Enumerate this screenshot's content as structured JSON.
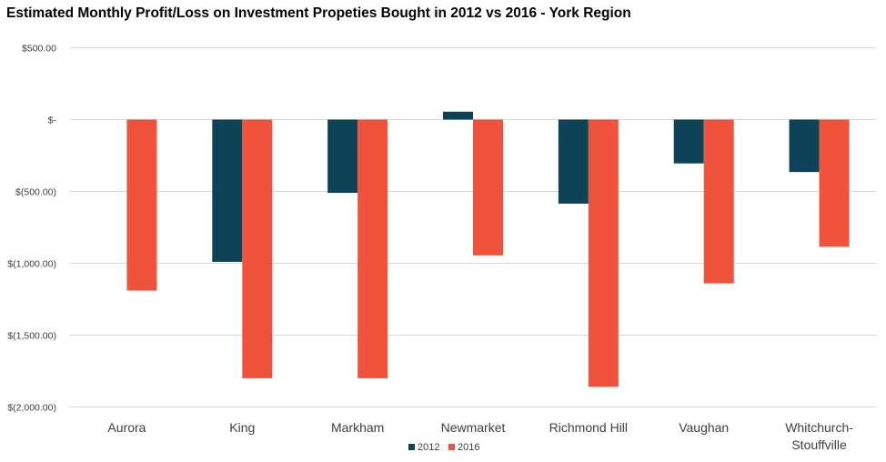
{
  "chart_data": {
    "type": "bar",
    "title": "Estimated Monthly Profit/Loss on Investment Propeties Bought in 2012 vs 2016 - York Region",
    "categories": [
      [
        "Aurora"
      ],
      [
        "King"
      ],
      [
        "Markham"
      ],
      [
        "Newmarket"
      ],
      [
        "Richmond Hill"
      ],
      [
        "Vaughan"
      ],
      [
        "Whitchurch-",
        "Stouffville"
      ]
    ],
    "series": [
      {
        "name": "2012",
        "color": "#0e4257",
        "values": [
          0,
          -990,
          -510,
          55,
          -585,
          -305,
          -365
        ]
      },
      {
        "name": "2016",
        "color": "#f0533b",
        "values": [
          -1190,
          -1800,
          -1800,
          -945,
          -1860,
          -1140,
          -885
        ]
      }
    ],
    "ylim": [
      -2000,
      500
    ],
    "yticks": [
      500,
      0,
      -500,
      -1000,
      -1500,
      -2000
    ],
    "ytick_labels": [
      "$500.00",
      "$-",
      "$(500.00)",
      "$(1,000.00)",
      "$(1,500.00)",
      "$(2,000.00)"
    ],
    "grid": true,
    "legend": "bottom",
    "xlabel": "",
    "ylabel": ""
  }
}
